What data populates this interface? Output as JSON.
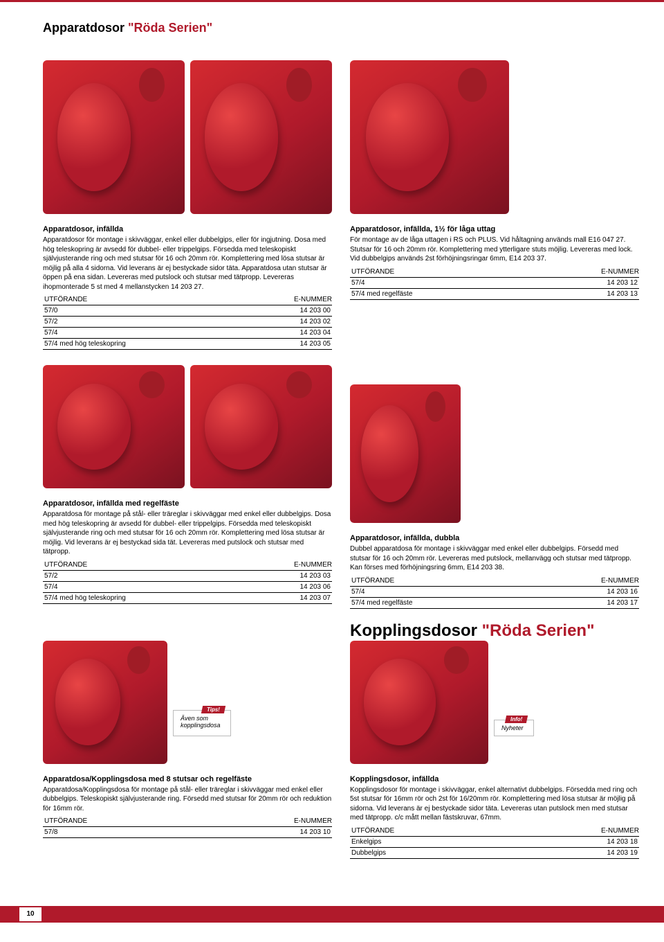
{
  "page_title_main": "Apparatdosor ",
  "page_title_series": "\"Röda Serien\"",
  "images": {
    "top_w": 205,
    "top_h": 220,
    "mid_w": 205,
    "mid_h": 175,
    "right_top_w": 230,
    "right_top_h": 220,
    "right_mid_w": 220,
    "right_mid_h": 200,
    "bottom_w": 180,
    "bottom_h": 175
  },
  "section1": {
    "heading": "Apparatdosor, infällda",
    "text": "Apparatdosor för montage i skivväggar, enkel eller dubbelgips, eller för ingjutning. Dosa med hög teleskopring är avsedd för dubbel- eller trippelgips. Försedda med teleskopiskt självjusterande ring och med stutsar för 16 och 20mm rör. Komplettering med lösa stutsar är möjlig på alla 4 sidorna. Vid leverans är ej bestyckade sidor täta. Apparatdosa utan stutsar är öppen på ena sidan. Levereras med putslock och stutsar med tätpropp. Levereras ihopmonterade 5 st med 4 mellanstycken 14 203 27.",
    "col1": "UTFÖRANDE",
    "col2": "E-NUMMER",
    "rows": [
      [
        "57/0",
        "14 203 00"
      ],
      [
        "57/2",
        "14 203 02"
      ],
      [
        "57/4",
        "14 203 04"
      ],
      [
        "57/4 med hög teleskopring",
        "14 203 05"
      ]
    ]
  },
  "section2": {
    "heading": "Apparatdosor, infällda, 1½ för låga uttag",
    "text": "För montage av de låga uttagen i RS och PLUS. Vid håltagning används mall E16 047 27. Stutsar för 16 och 20mm rör. Komplettering med ytterligare stuts möjlig. Levereras med lock. Vid dubbelgips används 2st förhöjningsringar 6mm, E14 203 37.",
    "col1": "UTFÖRANDE",
    "col2": "E-NUMMER",
    "rows": [
      [
        "57/4",
        "14 203 12"
      ],
      [
        "57/4 med regelfäste",
        "14 203 13"
      ]
    ]
  },
  "section3": {
    "heading": "Apparatdosor, infällda med regelfäste",
    "text": "Apparatdosa för montage på stål- eller träreglar i skivväggar med enkel eller dubbelgips. Dosa med hög teleskopring är avsedd för dubbel- eller trippelgips. Försedda med teleskopiskt självjusterande ring och med stutsar för 16 och 20mm rör. Komplettering med lösa stutsar är möjlig. Vid leverans är ej bestyckad sida tät. Levereras med putslock och stutsar med tätpropp.",
    "col1": "UTFÖRANDE",
    "col2": "E-NUMMER",
    "rows": [
      [
        "57/2",
        "14 203 03"
      ],
      [
        "57/4",
        "14 203 06"
      ],
      [
        "57/4 med hög teleskopring",
        "14 203 07"
      ]
    ]
  },
  "section4": {
    "heading": "Apparatdosor, infällda, dubbla",
    "text": "Dubbel apparatdosa för montage i skivväggar med enkel eller dubbelgips. Försedd med stutsar för 16 och 20mm rör. Levereras med putslock, mellanvägg och stutsar med tätpropp. Kan förses med förhöjningsring 6mm, E14 203 38.",
    "col1": "UTFÖRANDE",
    "col2": "E-NUMMER",
    "rows": [
      [
        "57/4",
        "14 203 16"
      ],
      [
        "57/4 med regelfäste",
        "14 203 17"
      ]
    ]
  },
  "koppling_heading_main": "Kopplingsdosor ",
  "koppling_heading_series": "\"Röda Serien\"",
  "tips_box": {
    "badge": "Tips!",
    "line1": "Även som",
    "line2": "kopplingsdosa"
  },
  "info_box": {
    "badge": "Info!",
    "line1": "Nyheter"
  },
  "section5": {
    "heading": "Apparatdosa/Kopplingsdosa med 8 stutsar och regelfäste",
    "text": "Apparatdosa/Kopplingsdosa för montage på stål- eller träreglar i skivväggar med enkel eller dubbelgips. Teleskopiskt självjusterande ring. Försedd med stutsar för 20mm rör och reduktion för 16mm rör.",
    "col1": "UTFÖRANDE",
    "col2": "E-NUMMER",
    "rows": [
      [
        "57/8",
        "14 203 10"
      ]
    ]
  },
  "section6": {
    "heading": "Kopplingsdosor, infällda",
    "text": "Kopplingsdosor för montage i skivväggar, enkel alternativt dubbelgips. Försedda med ring och 5st stutsar för 16mm rör och 2st för 16/20mm rör. Komplettering med lösa stutsar är möjlig på sidorna. Vid leverans är ej bestyckade sidor täta. Levereras utan putslock men med stutsar med tätpropp. c/c mått mellan fästskruvar, 67mm.",
    "col1": "UTFÖRANDE",
    "col2": "E-NUMMER",
    "rows": [
      [
        "Enkelgips",
        "14 203 18"
      ],
      [
        "Dubbelgips",
        "14 203 19"
      ]
    ]
  },
  "page_number": "10"
}
